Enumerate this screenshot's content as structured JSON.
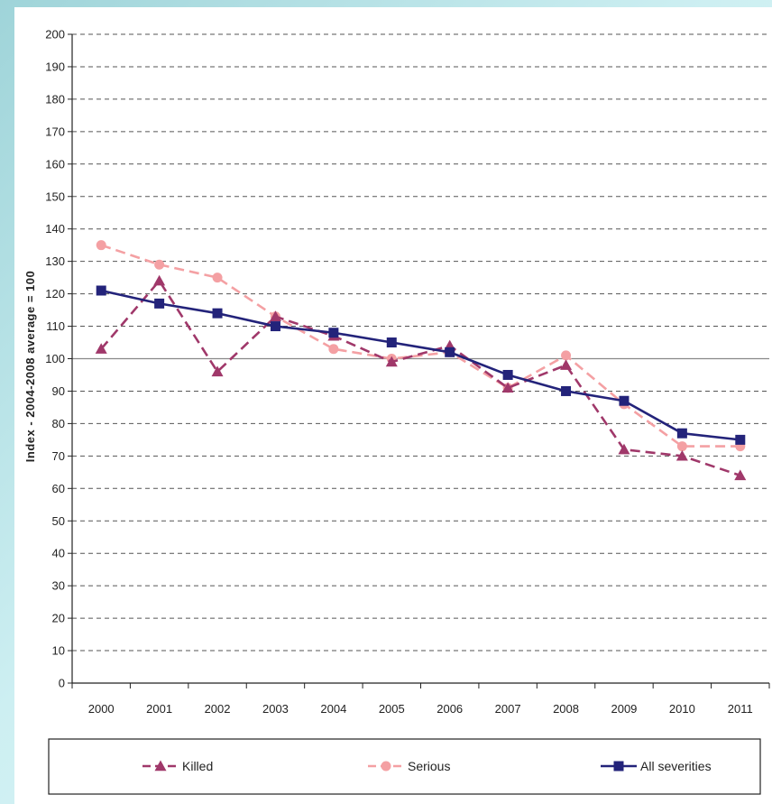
{
  "chart_data": {
    "type": "line",
    "ylabel": "Index - 2004-2008 average = 100",
    "xlabel": "",
    "title": "",
    "ylim": [
      0,
      200
    ],
    "ytick_step": 10,
    "yticks": [
      "0",
      "10",
      "20",
      "30",
      "40",
      "50",
      "60",
      "70",
      "80",
      "90",
      "100",
      "110",
      "120",
      "130",
      "140",
      "150",
      "160",
      "170",
      "180",
      "190",
      "200"
    ],
    "categories": [
      "2000",
      "2001",
      "2002",
      "2003",
      "2004",
      "2005",
      "2006",
      "2007",
      "2008",
      "2009",
      "2010",
      "2011"
    ],
    "reference_line": 100,
    "grid": "horizontal dashed",
    "legend_position": "bottom",
    "series": [
      {
        "name": "Killed",
        "marker": "triangle",
        "line_style": "dashed",
        "color": "#a0386a",
        "values": [
          103,
          124,
          96,
          113,
          107,
          99,
          104,
          91,
          98,
          72,
          70,
          64
        ]
      },
      {
        "name": "Serious",
        "marker": "circle",
        "line_style": "dashed",
        "color": "#f4a0a3",
        "values": [
          135,
          129,
          125,
          113,
          103,
          100,
          102,
          91,
          101,
          86,
          73,
          73
        ]
      },
      {
        "name": "All severities",
        "marker": "square",
        "line_style": "solid",
        "color": "#23237a",
        "values": [
          121,
          117,
          114,
          110,
          108,
          105,
          102,
          95,
          90,
          87,
          77,
          75
        ]
      }
    ]
  }
}
